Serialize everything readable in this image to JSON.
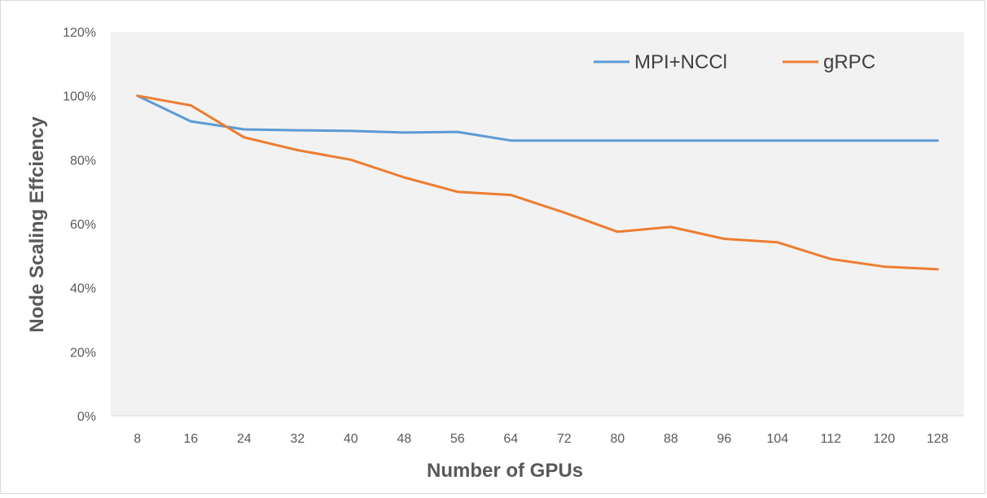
{
  "chart_data": {
    "type": "line",
    "title": "",
    "xlabel": "Number of GPUs",
    "ylabel": "Node Scaling Effciency",
    "categories": [
      "8",
      "16",
      "24",
      "32",
      "40",
      "48",
      "56",
      "64",
      "72",
      "80",
      "88",
      "96",
      "104",
      "112",
      "120",
      "128"
    ],
    "ylim": [
      0,
      120
    ],
    "yticks": [
      0,
      20,
      40,
      60,
      80,
      100,
      120
    ],
    "ytick_labels": [
      "0%",
      "20%",
      "40%",
      "60%",
      "80%",
      "100%",
      "120%"
    ],
    "legend_position": "top-right",
    "grid": false,
    "series": [
      {
        "name": "MPI+NCCl",
        "color": "#5b9bd5",
        "values": [
          100,
          92,
          89.5,
          89.2,
          89,
          88.5,
          88.7,
          86,
          86,
          86,
          86,
          86,
          86,
          86,
          86,
          86
        ]
      },
      {
        "name": "gRPC",
        "color": "#ed7d31",
        "values": [
          100,
          97,
          87,
          83,
          80,
          74.5,
          70,
          69,
          63.5,
          57.5,
          59,
          55.3,
          54.2,
          49,
          46.6,
          45.8
        ]
      }
    ]
  }
}
